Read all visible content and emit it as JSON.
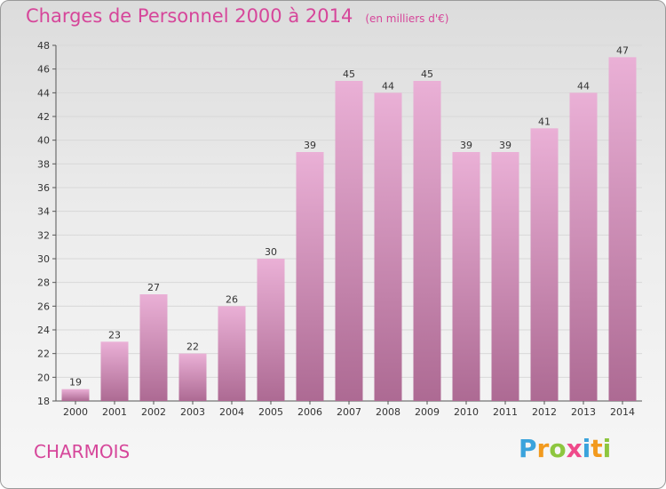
{
  "header": {
    "title": "Charges de Personnel 2000 à 2014",
    "subtitle": "(en milliers d'€)"
  },
  "footer": {
    "city": "CHARMOIS",
    "logo_letters": [
      {
        "ch": "P",
        "color": "#3aa3dc"
      },
      {
        "ch": "r",
        "color": "#f29a1e"
      },
      {
        "ch": "o",
        "color": "#8dc63f"
      },
      {
        "ch": "x",
        "color": "#ef4a8a"
      },
      {
        "ch": "i",
        "color": "#3aa3dc"
      },
      {
        "ch": "t",
        "color": "#f29a1e"
      },
      {
        "ch": "i",
        "color": "#8dc63f"
      }
    ]
  },
  "colors": {
    "accent": "#d6469a",
    "bar_light": "#eab0d6",
    "bar_dark": "#ad6a93",
    "label": "#333333",
    "grid": "#d8d8d8"
  },
  "chart_data": {
    "type": "bar",
    "categories": [
      "2000",
      "2001",
      "2002",
      "2003",
      "2004",
      "2005",
      "2006",
      "2007",
      "2008",
      "2009",
      "2010",
      "2011",
      "2012",
      "2013",
      "2014"
    ],
    "values": [
      19,
      23,
      27,
      22,
      26,
      30,
      39,
      45,
      44,
      45,
      39,
      39,
      41,
      44,
      47
    ],
    "ylim": [
      18,
      48
    ],
    "yticks": [
      18,
      20,
      22,
      24,
      26,
      28,
      30,
      32,
      34,
      36,
      38,
      40,
      42,
      44,
      46,
      48
    ],
    "grid": true,
    "legend": "none"
  }
}
